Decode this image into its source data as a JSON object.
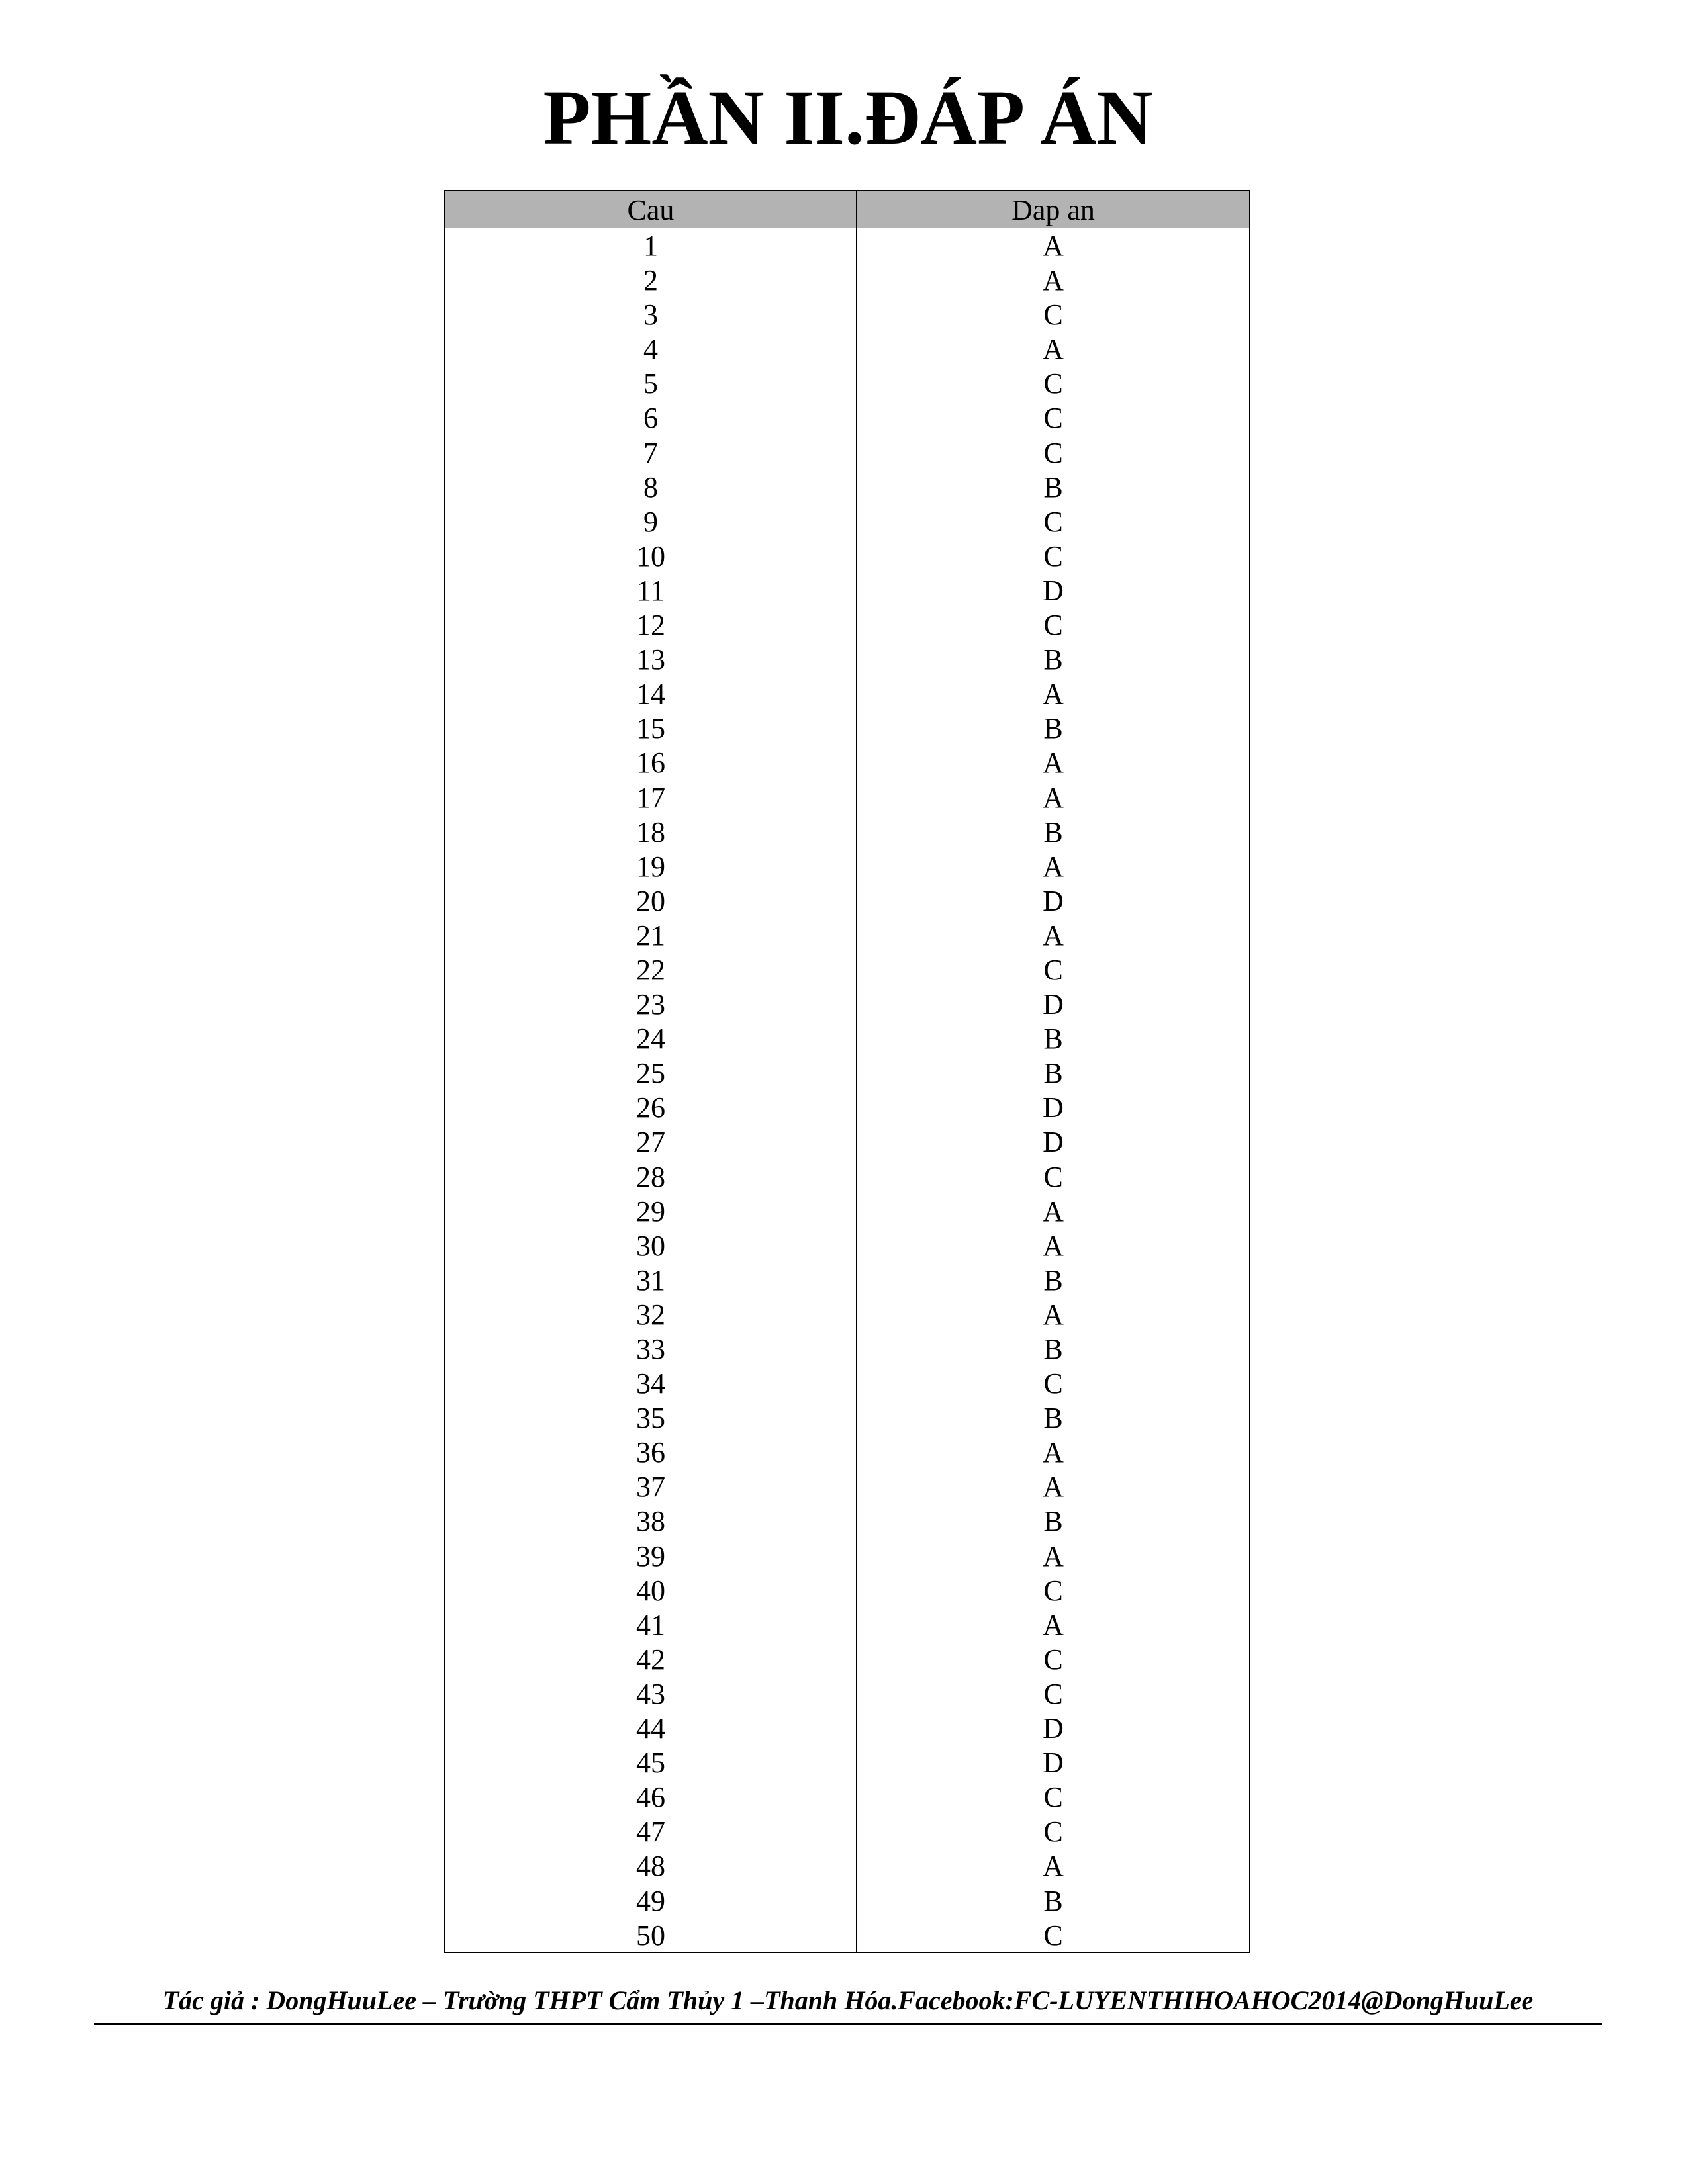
{
  "title": "PHẦN II.ĐÁP ÁN",
  "table": {
    "headers": [
      "Cau",
      "Dap an"
    ],
    "rows": [
      [
        "1",
        "A"
      ],
      [
        "2",
        "A"
      ],
      [
        "3",
        "C"
      ],
      [
        "4",
        "A"
      ],
      [
        "5",
        "C"
      ],
      [
        "6",
        "C"
      ],
      [
        "7",
        "C"
      ],
      [
        "8",
        "B"
      ],
      [
        "9",
        "C"
      ],
      [
        "10",
        "C"
      ],
      [
        "11",
        "D"
      ],
      [
        "12",
        "C"
      ],
      [
        "13",
        "B"
      ],
      [
        "14",
        "A"
      ],
      [
        "15",
        "B"
      ],
      [
        "16",
        "A"
      ],
      [
        "17",
        "A"
      ],
      [
        "18",
        "B"
      ],
      [
        "19",
        "A"
      ],
      [
        "20",
        "D"
      ],
      [
        "21",
        "A"
      ],
      [
        "22",
        "C"
      ],
      [
        "23",
        "D"
      ],
      [
        "24",
        "B"
      ],
      [
        "25",
        "B"
      ],
      [
        "26",
        "D"
      ],
      [
        "27",
        "D"
      ],
      [
        "28",
        "C"
      ],
      [
        "29",
        "A"
      ],
      [
        "30",
        "A"
      ],
      [
        "31",
        "B"
      ],
      [
        "32",
        "A"
      ],
      [
        "33",
        "B"
      ],
      [
        "34",
        "C"
      ],
      [
        "35",
        "B"
      ],
      [
        "36",
        "A"
      ],
      [
        "37",
        "A"
      ],
      [
        "38",
        "B"
      ],
      [
        "39",
        "A"
      ],
      [
        "40",
        "C"
      ],
      [
        "41",
        "A"
      ],
      [
        "42",
        "C"
      ],
      [
        "43",
        "C"
      ],
      [
        "44",
        "D"
      ],
      [
        "45",
        "D"
      ],
      [
        "46",
        "C"
      ],
      [
        "47",
        "C"
      ],
      [
        "48",
        "A"
      ],
      [
        "49",
        "B"
      ],
      [
        "50",
        "C"
      ]
    ]
  },
  "footer": "Tác giả : DongHuuLee – Trường THPT Cẩm Thủy 1 –Thanh Hóa.Facebook:FC-LUYENTHIHOAHOC2014@DongHuuLee",
  "colors": {
    "header_bg": "#b3b3b3",
    "text": "#000000"
  }
}
